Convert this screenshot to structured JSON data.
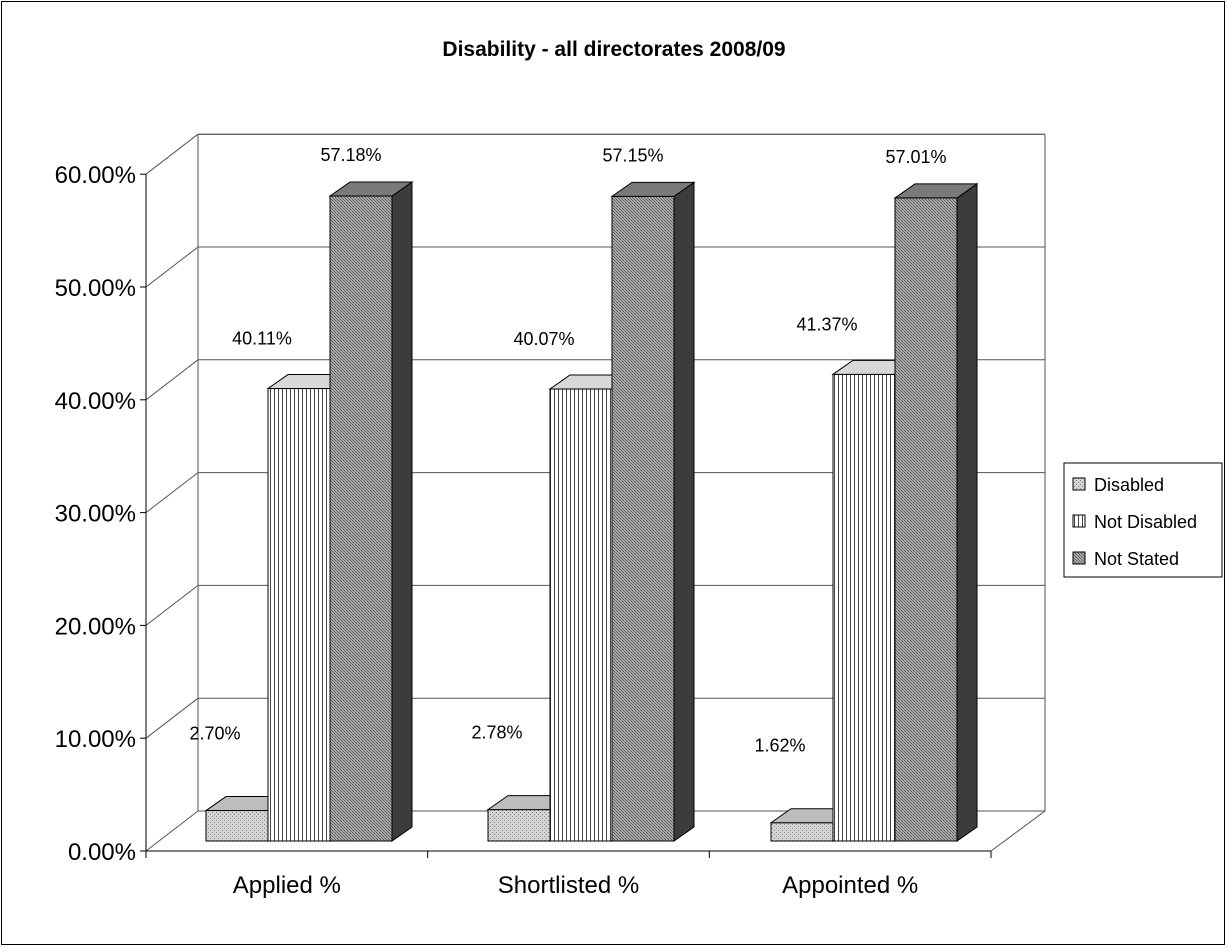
{
  "chart_data": {
    "type": "bar",
    "title": "Disability - all directorates 2008/09",
    "categories": [
      "Applied %",
      "Shortlisted %",
      "Appointed %"
    ],
    "series": [
      {
        "name": "Disabled",
        "values": [
          2.7,
          2.78,
          1.62
        ],
        "labels": [
          "2.70%",
          "2.78%",
          "1.62%"
        ]
      },
      {
        "name": "Not Disabled",
        "values": [
          40.11,
          40.07,
          41.37
        ],
        "labels": [
          "40.11%",
          "40.07%",
          "41.37%"
        ]
      },
      {
        "name": "Not Stated",
        "values": [
          57.18,
          57.15,
          57.01
        ],
        "labels": [
          "57.18%",
          "57.15%",
          "57.01%"
        ]
      }
    ],
    "ylim": [
      0,
      60
    ],
    "yticks": [
      "0.00%",
      "10.00%",
      "20.00%",
      "30.00%",
      "40.00%",
      "50.00%",
      "60.00%"
    ],
    "grid": true,
    "legend_position": "right",
    "three_d": true,
    "colors": {
      "Disabled": "#c8c8c8",
      "Not Disabled": "#ffffff",
      "Not Stated": "#8c8c8c"
    }
  }
}
